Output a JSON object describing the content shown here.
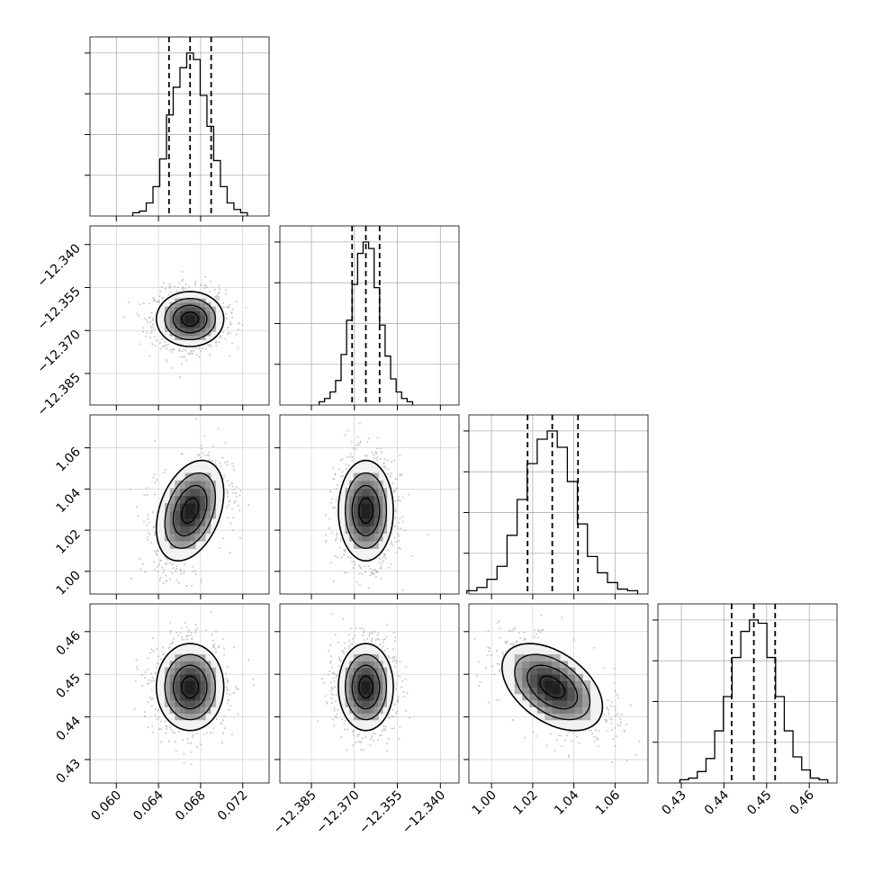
{
  "chart_data": {
    "type": "corner",
    "n_params": 4,
    "grid": true,
    "params": [
      {
        "range": [
          0.0575,
          0.0745
        ],
        "ticks": [
          0.06,
          0.064,
          0.068,
          0.072
        ],
        "tick_labels": [
          "0.060",
          "0.064",
          "0.068",
          "0.072"
        ],
        "quantiles": [
          0.065,
          0.067,
          0.069
        ],
        "mean": 0.067,
        "sd": 0.0016
      },
      {
        "range": [
          -12.396,
          -12.3335
        ],
        "ticks": [
          -12.385,
          -12.37,
          -12.355,
          -12.34
        ],
        "tick_labels": [
          "−12.385",
          "−12.370",
          "−12.355",
          "−12.340"
        ],
        "quantiles": [
          -12.3708,
          -12.366,
          -12.3612
        ],
        "mean": -12.366,
        "sd": 0.0048
      },
      {
        "range": [
          0.989,
          1.076
        ],
        "ticks": [
          1.0,
          1.02,
          1.04,
          1.06
        ],
        "tick_labels": [
          "1.00",
          "1.02",
          "1.04",
          "1.06"
        ],
        "quantiles": [
          1.0175,
          1.0295,
          1.042
        ],
        "mean": 1.0295,
        "sd": 0.0122
      },
      {
        "range": [
          0.4245,
          0.4665
        ],
        "ticks": [
          0.43,
          0.44,
          0.45,
          0.46
        ],
        "tick_labels": [
          "0.43",
          "0.44",
          "0.45",
          "0.46"
        ],
        "quantiles": [
          0.4418,
          0.447,
          0.452
        ],
        "mean": 0.447,
        "sd": 0.0051
      }
    ],
    "correlations": {
      "1-0": 0.0,
      "2-0": 0.35,
      "2-1": 0.0,
      "3-0": 0.0,
      "3-1": 0.0,
      "3-2": -0.45
    },
    "histograms": [
      [
        0.02,
        0.03,
        0.08,
        0.18,
        0.35,
        0.62,
        0.79,
        0.91,
        1.0,
        0.96,
        0.74,
        0.55,
        0.34,
        0.18,
        0.08,
        0.04,
        0.02
      ],
      [
        0.02,
        0.04,
        0.08,
        0.15,
        0.31,
        0.52,
        0.74,
        0.93,
        1.0,
        0.96,
        0.72,
        0.49,
        0.3,
        0.16,
        0.08,
        0.04,
        0.02
      ],
      [
        0.02,
        0.04,
        0.09,
        0.17,
        0.36,
        0.58,
        0.8,
        0.95,
        1.0,
        0.9,
        0.69,
        0.43,
        0.23,
        0.13,
        0.07,
        0.03,
        0.02
      ],
      [
        0.02,
        0.03,
        0.07,
        0.15,
        0.32,
        0.53,
        0.77,
        0.93,
        1.0,
        0.98,
        0.77,
        0.53,
        0.32,
        0.16,
        0.08,
        0.03,
        0.02
      ]
    ],
    "contour_levels_sigma": [
      0.5,
      1.0,
      1.5,
      2.0
    ]
  }
}
